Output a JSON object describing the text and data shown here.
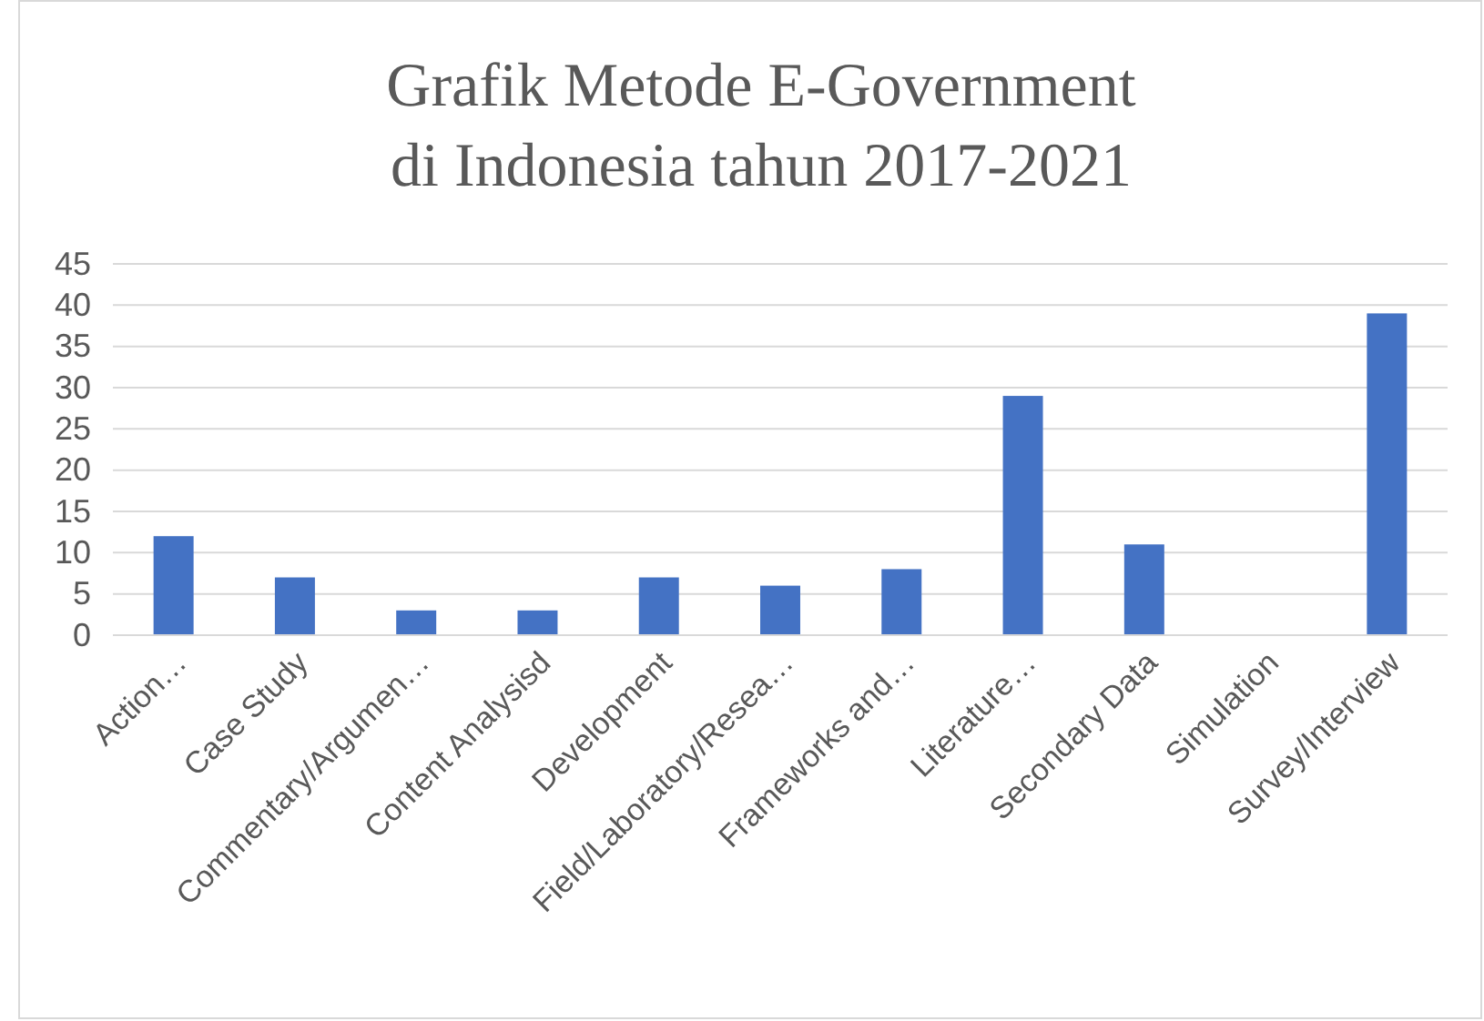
{
  "chart_data": {
    "type": "bar",
    "title": "Grafik Metode E-Government di Indonesia tahun 2017-2021",
    "categories": [
      "Action…",
      "Case Study",
      "Commentary/Argumen…",
      "Content Analysisd",
      "Development",
      "Field/Laboratory/Resea…",
      "Frameworks and…",
      "Literature…",
      "Secondary Data",
      "Simulation",
      "Survey/Interview"
    ],
    "values": [
      12,
      7,
      3,
      3,
      7,
      6,
      8,
      29,
      11,
      0,
      39
    ],
    "color": "#4472c4",
    "ylim": [
      0,
      45
    ],
    "yticks": [
      0,
      5,
      10,
      15,
      20,
      25,
      30,
      35,
      40,
      45
    ],
    "grid": "y"
  }
}
